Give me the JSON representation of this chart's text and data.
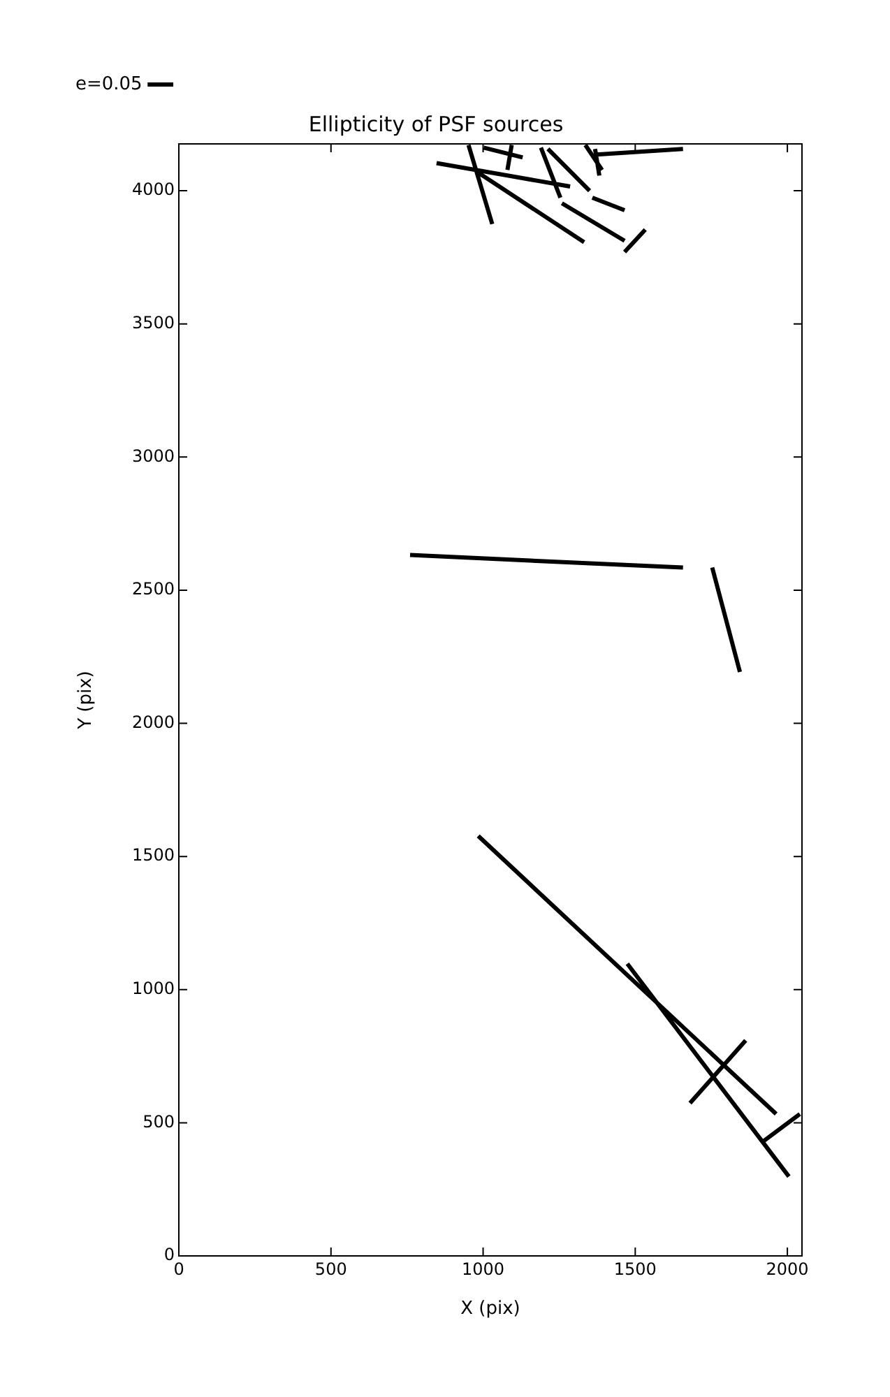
{
  "chart_data": {
    "type": "line",
    "title": "Ellipticity of PSF sources",
    "xlabel": "X (pix)",
    "ylabel": "Y (pix)",
    "xlim": [
      0,
      2048
    ],
    "ylim": [
      0,
      4176
    ],
    "xticks": [
      0,
      500,
      1000,
      1500,
      2000
    ],
    "yticks": [
      0,
      500,
      1000,
      1500,
      2000,
      2500,
      3000,
      3500,
      4000
    ],
    "grid": false,
    "legend": "top left",
    "marker": "none",
    "line_style": "solid",
    "series": [
      {
        "name": "e=0.05",
        "color": "#000000",
        "x": [
          984,
          1963,
          null,
          1474,
          2005,
          null,
          1680,
          1863,
          null,
          1918,
          2041,
          null,
          760,
          1657,
          null,
          1753,
          1844,
          null,
          847,
          1286,
          null,
          952,
          1030,
          null,
          984,
          1332,
          null,
          1080,
          1094,
          null,
          1002,
          1130,
          null,
          1190,
          1254,
          null,
          1213,
          1350,
          null,
          1359,
          1465,
          null,
          1259,
          1465,
          null,
          1465,
          1533,
          null,
          1368,
          1382,
          null,
          1336,
          1391,
          null,
          1373,
          1657
        ],
        "values": [
          1577,
          533,
          null,
          1097,
          298,
          null,
          574,
          809,
          null,
          428,
          533,
          null,
          2632,
          2585,
          null,
          2585,
          2193,
          null,
          4104,
          4016,
          null,
          4172,
          3875,
          null,
          4068,
          3807,
          null,
          4078,
          4172,
          null,
          4162,
          4125,
          null,
          4162,
          3974,
          null,
          4157,
          4000,
          null,
          3974,
          3927,
          null,
          3953,
          3812,
          null,
          3770,
          3854,
          null,
          4157,
          4057,
          null,
          4172,
          4078,
          null,
          4136,
          4157
        ]
      }
    ]
  }
}
